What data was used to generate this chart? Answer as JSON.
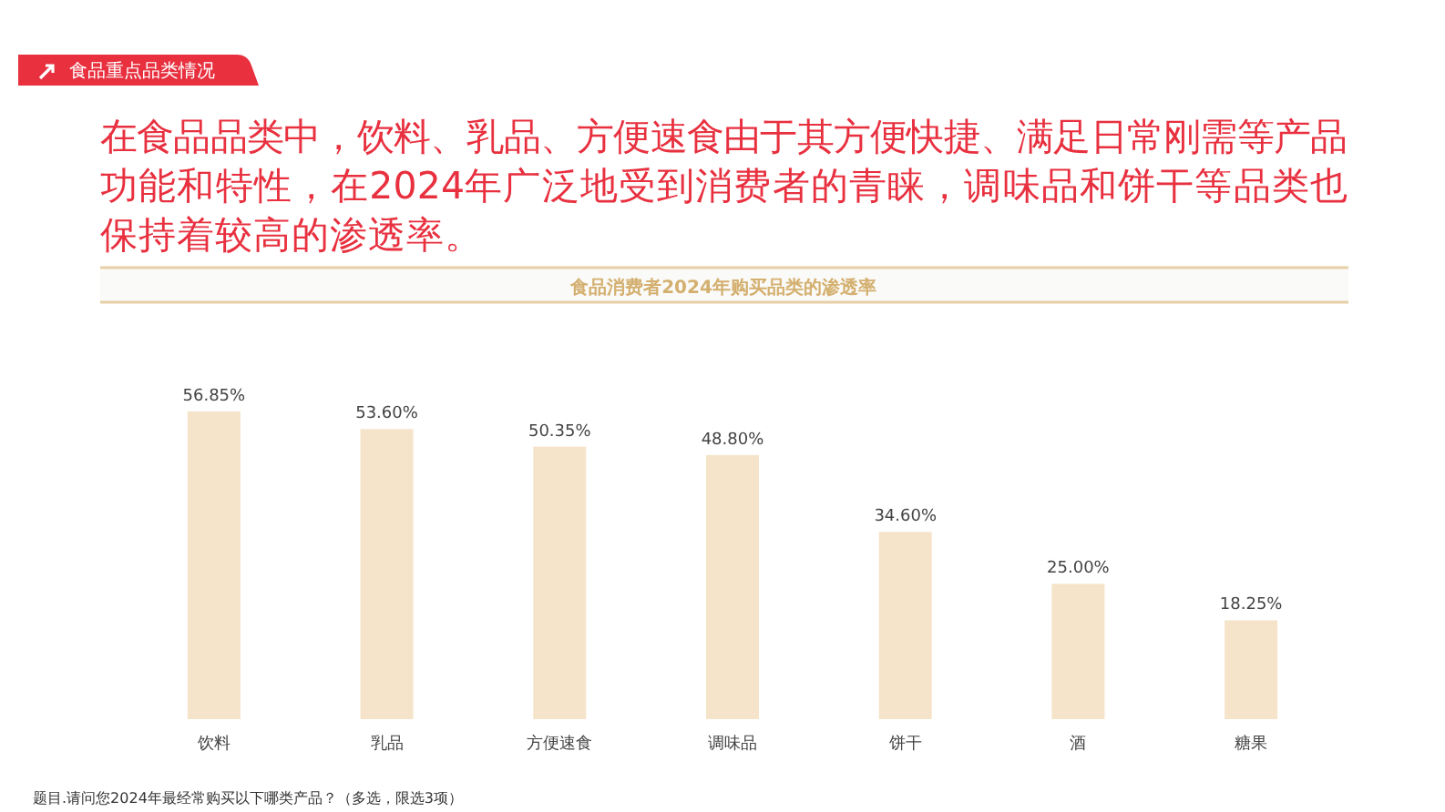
{
  "chart_data": {
    "type": "bar",
    "title": "在食品品类中，饮料、乳品、方便速食由于其方便快捷、满足日常刚需等产品功能和特性，在2024年广泛地受到消费者的青睐，调味品和饼干等品类也保持着较高的渗透率。",
    "subtitle": "食品消费者2024年购买品类的渗透率",
    "annotations": [
      "食品重点品类情况",
      "题目.请问您2024年最经常购买以下哪类产品？（多选，限选3项）"
    ],
    "categories": [
      "饮料",
      "乳品",
      "方便速食",
      "调味品",
      "饼干",
      "酒",
      "糖果"
    ],
    "values": [
      56.85,
      53.6,
      50.35,
      48.8,
      34.6,
      25.0,
      18.25
    ],
    "value_labels": [
      "56.85%",
      "53.60%",
      "50.35%",
      "48.80%",
      "34.60%",
      "25.00%",
      "18.25%"
    ],
    "color": "#f5e4c9"
  }
}
